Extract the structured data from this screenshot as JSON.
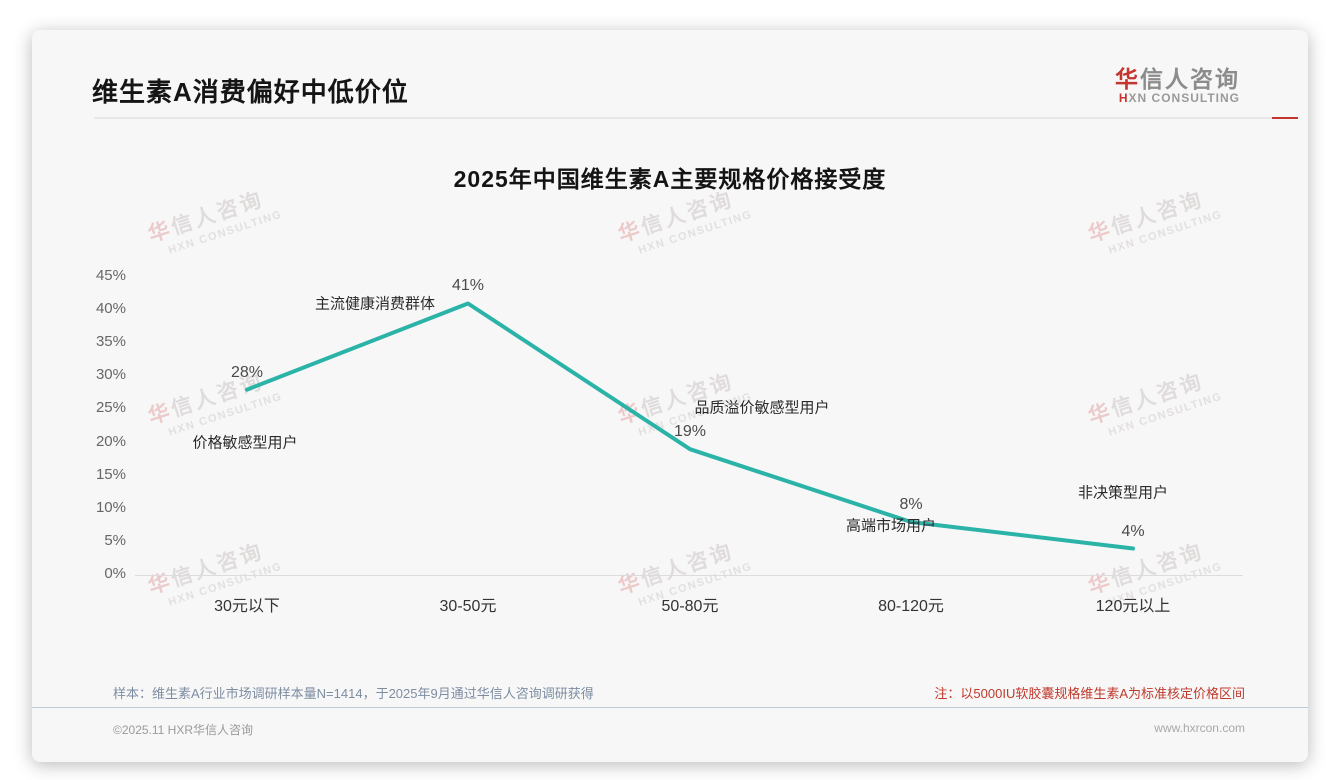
{
  "header": {
    "title": "维生素A消费偏好中低价位",
    "logo": {
      "zh_accent": "华",
      "zh_rest": "信人咨询",
      "en_accent": "H",
      "en_rest": "XN CONSULTING"
    }
  },
  "watermark": {
    "zh_accent": "华",
    "zh_rest": "信人咨询",
    "en": "HXN CONSULTING"
  },
  "chart_data": {
    "type": "line",
    "title": "2025年中国维生素A主要规格价格接受度",
    "categories": [
      "30元以下",
      "30-50元",
      "50-80元",
      "80-120元",
      "120元以上"
    ],
    "values": [
      28,
      41,
      19,
      8,
      4
    ],
    "value_labels": [
      "28%",
      "41%",
      "19%",
      "8%",
      "4%"
    ],
    "annotations": [
      "价格敏感型用户",
      "主流健康消费群体",
      "品质溢价敏感型用户",
      "高端市场用户",
      "非决策型用户"
    ],
    "y_ticks": [
      "45%",
      "40%",
      "35%",
      "30%",
      "25%",
      "20%",
      "15%",
      "10%",
      "5%",
      "0%"
    ],
    "ylim": [
      0,
      45
    ],
    "xlabel": "",
    "ylabel": "",
    "grid": false,
    "legend": false,
    "line_color": "#2bb3a8"
  },
  "footer": {
    "sample_note": "样本：维生素A行业市场调研样本量N=1414，于2025年9月通过华信人咨询调研获得",
    "price_note": "注：以5000IU软胶囊规格维生素A为标准核定价格区间",
    "copyright": "©2025.11 HXR华信人咨询",
    "website": "www.hxrcon.com"
  },
  "colors": {
    "accent_red": "#c5352f",
    "note_red": "#c0392b",
    "line_teal": "#2bb3a8"
  }
}
